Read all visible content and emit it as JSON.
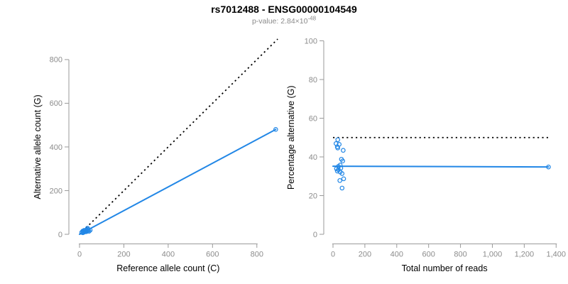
{
  "header": {
    "title": "rs7012488 - ENSG00000104549",
    "subtitle_base": "p-value: 2.84×10",
    "subtitle_exponent": "-48"
  },
  "colors": {
    "accent_blue": "#2287e6",
    "reference_line_black": "#000000",
    "tick_label_gray": "#8c8c8c",
    "axis_line_gray": "#9a9a9a",
    "subtitle_gray": "#8a8a8a",
    "title_black": "#000000"
  },
  "chart_data": [
    {
      "name": "allele-count-scatter",
      "type": "scatter",
      "xlabel": "Reference allele count (C)",
      "ylabel": "Alternative allele count (G)",
      "xlim": [
        0,
        900
      ],
      "ylim": [
        0,
        894
      ],
      "xticks": [
        0,
        200,
        400,
        600,
        800
      ],
      "xtick_labels": [
        "0",
        "200",
        "400",
        "600",
        "800"
      ],
      "yticks": [
        0,
        200,
        400,
        600,
        800
      ],
      "ytick_labels": [
        "0",
        "200",
        "400",
        "600",
        "800"
      ],
      "grid": false,
      "legend": null,
      "points": [
        [
          15,
          15
        ],
        [
          10,
          9
        ],
        [
          21,
          18
        ],
        [
          15,
          12
        ],
        [
          17,
          13
        ],
        [
          36,
          28
        ],
        [
          32,
          21
        ],
        [
          38,
          23
        ],
        [
          29,
          16
        ],
        [
          22,
          12
        ],
        [
          32,
          17
        ],
        [
          15,
          7
        ],
        [
          23,
          11
        ],
        [
          18,
          9
        ],
        [
          31,
          14
        ],
        [
          39,
          18
        ],
        [
          48,
          19
        ],
        [
          31,
          12
        ],
        [
          43,
          14
        ],
        [
          885,
          480
        ]
      ],
      "reference_line": {
        "label": "identity 50% line",
        "x1": 0,
        "y1": 0,
        "x2": 894,
        "y2": 894,
        "style": "dotted"
      },
      "fit_line": {
        "label": "fitted allelic ratio line",
        "x1": 0,
        "y1": 0,
        "x2": 885,
        "y2": 480,
        "style": "solid"
      }
    },
    {
      "name": "percentage-scatter",
      "type": "scatter",
      "xlabel": "Total number of reads",
      "ylabel": "Percentage alternative (G)",
      "xlim": [
        0,
        1430
      ],
      "ylim": [
        0,
        100
      ],
      "xticks": [
        0,
        200,
        400,
        600,
        800,
        1000,
        1200,
        1400
      ],
      "xtick_labels": [
        "0",
        "200",
        "400",
        "600",
        "800",
        "1,000",
        "1,200",
        "1,400"
      ],
      "yticks": [
        0,
        20,
        40,
        60,
        80,
        100
      ],
      "ytick_labels": [
        "0",
        "20",
        "40",
        "60",
        "80",
        "100"
      ],
      "grid": false,
      "legend": null,
      "points": [
        [
          30,
          48.9
        ],
        [
          19,
          46.9
        ],
        [
          39,
          46.5
        ],
        [
          27,
          45.2
        ],
        [
          30,
          44.6
        ],
        [
          64,
          43.4
        ],
        [
          53,
          38.8
        ],
        [
          61,
          37.9
        ],
        [
          45,
          35.8
        ],
        [
          34,
          35.1
        ],
        [
          49,
          34.2
        ],
        [
          22,
          33.9
        ],
        [
          34,
          33.4
        ],
        [
          27,
          32.7
        ],
        [
          45,
          32.2
        ],
        [
          57,
          31.4
        ],
        [
          67,
          28.7
        ],
        [
          43,
          27.8
        ],
        [
          57,
          23.9
        ],
        [
          1352,
          34.8
        ]
      ],
      "reference_line": {
        "label": "50 percent reference line",
        "x1": 0,
        "y1": 50,
        "x2": 1360,
        "y2": 50,
        "style": "dotted"
      },
      "fit_line": {
        "label": "mean percentage line",
        "x1": 0,
        "y1": 35.2,
        "x2": 1352,
        "y2": 34.8,
        "style": "solid"
      }
    }
  ]
}
